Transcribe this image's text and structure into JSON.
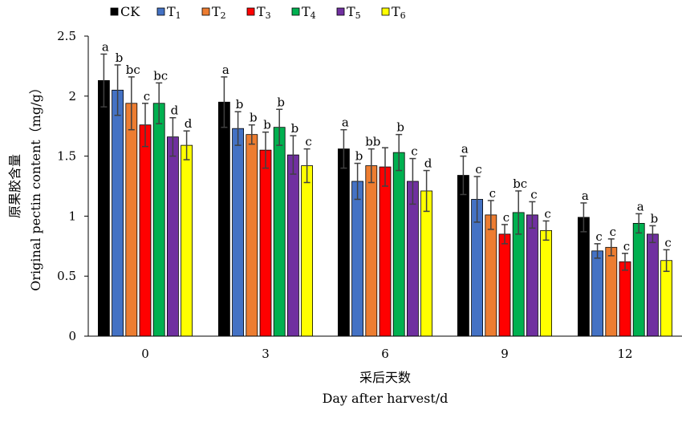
{
  "chart_data": {
    "type": "bar",
    "categories": [
      "0",
      "3",
      "6",
      "9",
      "12"
    ],
    "series": [
      {
        "name": "CK",
        "sub": "",
        "color": "#000000",
        "values": [
          2.13,
          1.95,
          1.56,
          1.34,
          0.99
        ],
        "errors": [
          0.22,
          0.21,
          0.16,
          0.16,
          0.12
        ],
        "labels": [
          "a",
          "a",
          "a",
          "a",
          "a"
        ]
      },
      {
        "name": "T",
        "sub": "1",
        "color": "#4472C4",
        "values": [
          2.05,
          1.73,
          1.29,
          1.14,
          0.71
        ],
        "errors": [
          0.21,
          0.14,
          0.15,
          0.19,
          0.06
        ],
        "labels": [
          "b",
          "b",
          "b",
          "c",
          "c"
        ]
      },
      {
        "name": "T",
        "sub": "2",
        "color": "#ED7D31",
        "values": [
          1.94,
          1.68,
          1.42,
          1.01,
          0.74
        ],
        "errors": [
          0.22,
          0.08,
          0.14,
          0.12,
          0.07
        ],
        "labels": [
          "bc",
          "b",
          "bb",
          "c",
          "c"
        ]
      },
      {
        "name": "T",
        "sub": "3",
        "color": "#FF0000",
        "values": [
          1.76,
          1.55,
          1.41,
          0.85,
          0.62
        ],
        "errors": [
          0.18,
          0.15,
          0.16,
          0.08,
          0.07
        ],
        "labels": [
          "c",
          "b",
          "",
          "c",
          "c"
        ]
      },
      {
        "name": "T",
        "sub": "4",
        "color": "#00B050",
        "values": [
          1.94,
          1.74,
          1.53,
          1.03,
          0.94
        ],
        "errors": [
          0.17,
          0.15,
          0.15,
          0.18,
          0.08
        ],
        "labels": [
          "bc",
          "b",
          "b",
          "bc",
          "a"
        ]
      },
      {
        "name": "T",
        "sub": "5",
        "color": "#7030A0",
        "values": [
          1.66,
          1.51,
          1.29,
          1.01,
          0.85
        ],
        "errors": [
          0.16,
          0.16,
          0.19,
          0.11,
          0.07
        ],
        "labels": [
          "d",
          "b",
          "c",
          "c",
          "b"
        ]
      },
      {
        "name": "T",
        "sub": "6",
        "color": "#FFFF00",
        "values": [
          1.59,
          1.42,
          1.21,
          0.88,
          0.63
        ],
        "errors": [
          0.12,
          0.14,
          0.17,
          0.08,
          0.09
        ],
        "labels": [
          "d",
          "c",
          "d",
          "c",
          "c"
        ]
      }
    ],
    "ylim": [
      0,
      2.5
    ],
    "yticks": [
      "0",
      "0.5",
      "1",
      "1.5",
      "2",
      "2.5"
    ],
    "ylabel_cn": "原果胶含量",
    "ylabel_en": "Original pectin content（mg/g）",
    "xlabel_cn": "采后天数",
    "xlabel_en": "Day after harvest/d",
    "legend_position": "top-left",
    "grid": false
  }
}
